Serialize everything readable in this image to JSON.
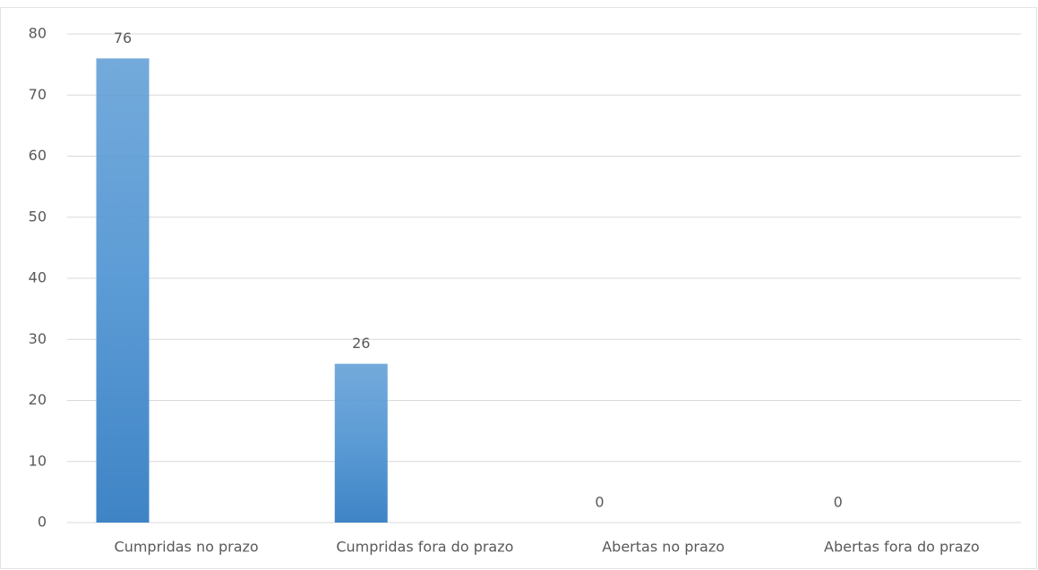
{
  "chart_data": {
    "type": "bar",
    "categories": [
      "Cumpridas no prazo",
      "Cumpridas fora do prazo",
      "Abertas no prazo",
      "Abertas fora do prazo"
    ],
    "values": [
      76,
      26,
      0,
      0
    ],
    "color": "#5b9bd5",
    "ylim": [
      0,
      80
    ],
    "yticks": [
      0,
      10,
      20,
      30,
      40,
      50,
      60,
      70,
      80
    ],
    "grid": true,
    "data_labels": true
  }
}
